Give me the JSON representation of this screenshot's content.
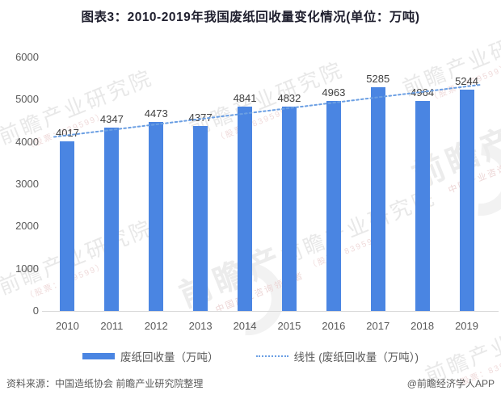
{
  "title": "图表3：2010-2019年我国废纸回收量变化情况(单位：万吨)",
  "chart_data": {
    "type": "bar",
    "title": "图表3：2010-2019年我国废纸回收量变化情况(单位：万吨)",
    "categories": [
      "2010",
      "2011",
      "2012",
      "2013",
      "2014",
      "2015",
      "2016",
      "2017",
      "2018",
      "2019"
    ],
    "series": [
      {
        "name": "废纸回收量（万吨）",
        "values": [
          4017,
          4347,
          4473,
          4377,
          4841,
          4832,
          4963,
          5285,
          4964,
          5244
        ]
      }
    ],
    "trendline": {
      "label": "线性 (废纸回收量（万吨）)",
      "kind": "linear",
      "style": "dotted"
    },
    "xlabel": "",
    "ylabel": "",
    "ylim": [
      0,
      6000
    ],
    "yticks": [
      0,
      1000,
      2000,
      3000,
      4000,
      5000,
      6000
    ],
    "grid": false,
    "legend_position": "bottom",
    "data_labels": true,
    "colors": {
      "bar": "#4a85e2",
      "trend": "#6b9fe3"
    }
  },
  "legend": {
    "bar_label": "废纸回收量（万吨）",
    "trend_label": "线性 (废纸回收量（万吨）)"
  },
  "footer": {
    "source": "资料来源：中国造纸协会 前瞻产业研究院整理",
    "credit": "@前瞻经济学人APP"
  },
  "watermark": {
    "brand": "前瞻产业研究院",
    "stock": "（股票：839599）",
    "logo_text": "前瞻产",
    "tagline": "中国产业咨询领导者"
  }
}
